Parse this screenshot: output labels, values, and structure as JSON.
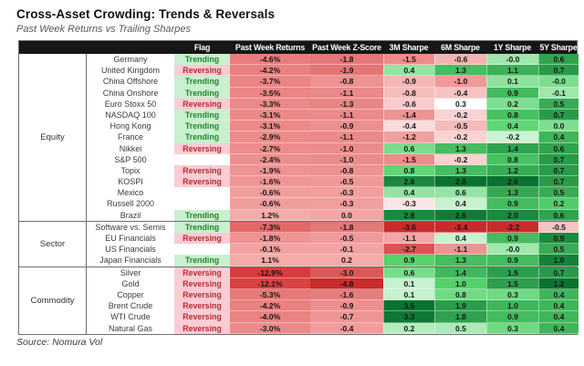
{
  "title": "Cross-Asset Crowding: Trends & Reversals",
  "subtitle": "Past Week Returns vs Trailing Sharpes",
  "source": "Source: Nomura Vol",
  "colors": {
    "header_bg": "#161616",
    "header_text": "#ffffff",
    "trending_bg": "#c9f0cf",
    "trending_text": "#27852f",
    "reversing_bg": "#fbccd4",
    "reversing_text": "#b8292f",
    "heat_red_deep": "#c92b2b",
    "heat_red_mid": "#ef8f8f",
    "heat_green_deep": "#0a7231",
    "heat_green_mid": "#57d46e"
  },
  "chart_data": {
    "type": "table",
    "title": "Cross-Asset Crowding: Trends & Reversals",
    "subtitle": "Past Week Returns vs Trailing Sharpes",
    "source": "Source: Nomura Vol",
    "columns": [
      "",
      "",
      "Flag",
      "Past Week Returns",
      "Past Week Z-Score",
      "3M Sharpe",
      "6M Sharpe",
      "1Y Sharpe",
      "5Y Sharpe"
    ],
    "legend_note": "cells shaded red-to-green heatmap by value",
    "groups": [
      {
        "name": "Equity",
        "rows": [
          {
            "asset": "Germany",
            "flag": "Trending",
            "ret": "-4.6%",
            "z": "-1.8",
            "s3m": "-1.5",
            "s6m": "-0.6",
            "s1y": "-0.0",
            "s5y": "0.6"
          },
          {
            "asset": "United Kingdom",
            "flag": "Reversing",
            "ret": "-4.2%",
            "z": "-1.9",
            "s3m": "0.4",
            "s6m": "1.3",
            "s1y": "1.1",
            "s5y": "0.7"
          },
          {
            "asset": "China Offshore",
            "flag": "Trending",
            "ret": "-3.7%",
            "z": "-0.8",
            "s3m": "-0.9",
            "s6m": "-1.0",
            "s1y": "0.1",
            "s5y": "-0.0"
          },
          {
            "asset": "China Onshore",
            "flag": "Trending",
            "ret": "-3.5%",
            "z": "-1.1",
            "s3m": "-0.8",
            "s6m": "-0.4",
            "s1y": "0.9",
            "s5y": "-0.1"
          },
          {
            "asset": "Euro Stoxx 50",
            "flag": "Reversing",
            "ret": "-3.3%",
            "z": "-1.3",
            "s3m": "-0.6",
            "s6m": "0.3",
            "s1y": "0.2",
            "s5y": "0.5"
          },
          {
            "asset": "NASDAQ 100",
            "flag": "Trending",
            "ret": "-3.1%",
            "z": "-1.1",
            "s3m": "-1.4",
            "s6m": "-0.2",
            "s1y": "0.8",
            "s5y": "0.7"
          },
          {
            "asset": "Hong Kong",
            "flag": "Trending",
            "ret": "-3.1%",
            "z": "-0.9",
            "s3m": "-0.4",
            "s6m": "-0.5",
            "s1y": "0.4",
            "s5y": "0.0"
          },
          {
            "asset": "France",
            "flag": "Trending",
            "ret": "-2.9%",
            "z": "-1.1",
            "s3m": "-1.2",
            "s6m": "-0.2",
            "s1y": "-0.2",
            "s5y": "0.4"
          },
          {
            "asset": "Nikkei",
            "flag": "Reversing",
            "ret": "-2.7%",
            "z": "-1.0",
            "s3m": "0.6",
            "s6m": "1.3",
            "s1y": "1.4",
            "s5y": "0.6"
          },
          {
            "asset": "S&P 500",
            "flag": "",
            "ret": "-2.4%",
            "z": "-1.0",
            "s3m": "-1.5",
            "s6m": "-0.2",
            "s1y": "0.8",
            "s5y": "0.7"
          },
          {
            "asset": "Topix",
            "flag": "Reversing",
            "ret": "-1.9%",
            "z": "-0.8",
            "s3m": "0.8",
            "s6m": "1.3",
            "s1y": "1.2",
            "s5y": "0.7"
          },
          {
            "asset": "KOSPI",
            "flag": "Reversing",
            "ret": "-1.6%",
            "z": "-0.5",
            "s3m": "2.8",
            "s6m": "2.8",
            "s1y": "2.6",
            "s5y": "0.7"
          },
          {
            "asset": "Mexico",
            "flag": "",
            "ret": "-0.6%",
            "z": "-0.3",
            "s3m": "0.4",
            "s6m": "0.6",
            "s1y": "1.3",
            "s5y": "0.5"
          },
          {
            "asset": "Russell 2000",
            "flag": "",
            "ret": "-0.6%",
            "z": "-0.3",
            "s3m": "-0.3",
            "s6m": "0.4",
            "s1y": "0.9",
            "s5y": "0.2"
          },
          {
            "asset": "Brazil",
            "flag": "Trending",
            "ret": "1.2%",
            "z": "0.0",
            "s3m": "2.8",
            "s6m": "2.6",
            "s1y": "2.0",
            "s5y": "0.6"
          }
        ]
      },
      {
        "name": "Sector",
        "rows": [
          {
            "asset": "Software vs. Semis",
            "flag": "Trending",
            "ret": "-7.3%",
            "z": "-1.8",
            "s3m": "-3.6",
            "s6m": "-3.4",
            "s1y": "-2.2",
            "s5y": "-0.5"
          },
          {
            "asset": "EU Financials",
            "flag": "Reversing",
            "ret": "-1.8%",
            "z": "-0.5",
            "s3m": "-1.1",
            "s6m": "0.4",
            "s1y": "0.9",
            "s5y": "0.9"
          },
          {
            "asset": "US Financials",
            "flag": "",
            "ret": "-0.1%",
            "z": "-0.1",
            "s3m": "-2.7",
            "s6m": "-1.1",
            "s1y": "-0.0",
            "s5y": "0.5"
          },
          {
            "asset": "Japan Financials",
            "flag": "Trending",
            "ret": "1.1%",
            "z": "0.2",
            "s3m": "0.9",
            "s6m": "1.3",
            "s1y": "0.9",
            "s5y": "1.0"
          }
        ]
      },
      {
        "name": "Commodity",
        "rows": [
          {
            "asset": "Silver",
            "flag": "Reversing",
            "ret": "-12.9%",
            "z": "-3.0",
            "s3m": "0.6",
            "s6m": "1.4",
            "s1y": "1.5",
            "s5y": "0.7"
          },
          {
            "asset": "Gold",
            "flag": "Reversing",
            "ret": "-12.1%",
            "z": "-4.8",
            "s3m": "0.1",
            "s6m": "1.0",
            "s1y": "1.5",
            "s5y": "1.2"
          },
          {
            "asset": "Copper",
            "flag": "Reversing",
            "ret": "-5.3%",
            "z": "-1.6",
            "s3m": "0.1",
            "s6m": "0.8",
            "s1y": "0.3",
            "s5y": "0.4"
          },
          {
            "asset": "Brent Crude",
            "flag": "Reversing",
            "ret": "-4.2%",
            "z": "-0.9",
            "s3m": "3.5",
            "s6m": "1.9",
            "s1y": "1.0",
            "s5y": "0.4"
          },
          {
            "asset": "WTI Crude",
            "flag": "Reversing",
            "ret": "-4.0%",
            "z": "-0.7",
            "s3m": "3.3",
            "s6m": "1.8",
            "s1y": "0.9",
            "s5y": "0.4"
          },
          {
            "asset": "Natural Gas",
            "flag": "Reversing",
            "ret": "-3.0%",
            "z": "-0.4",
            "s3m": "0.2",
            "s6m": "0.5",
            "s1y": "0.3",
            "s5y": "0.4"
          }
        ]
      }
    ]
  }
}
